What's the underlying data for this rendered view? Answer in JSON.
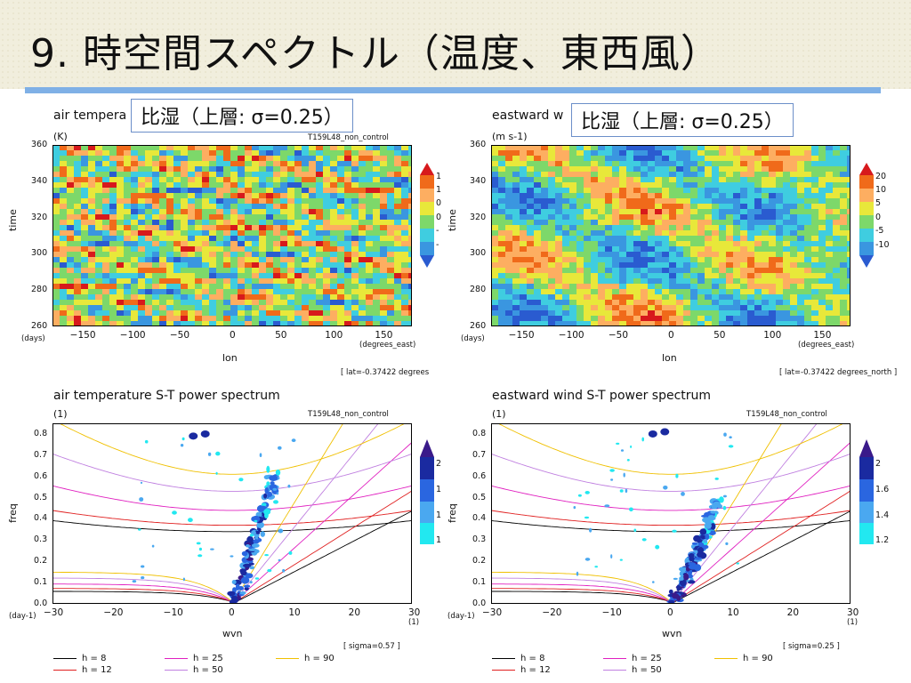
{
  "slide": {
    "title": "9. 時空間スペクトル（温度、東西風）",
    "accent_color": "#7fb0e6"
  },
  "callouts": [
    "比湿（上層: σ=0.25）",
    "比湿（上層: σ=0.25）"
  ],
  "hov_left": {
    "title": "air tempera",
    "units": "(K)",
    "run": "T159L48_non_control",
    "ylabel": "time",
    "yunits": "(days)",
    "xlabel": "lon",
    "xunits": "(degrees_east)",
    "footer": "[ lat=-0.37422 degrees",
    "colorbar_labels": [
      "1",
      "1",
      "0",
      "0",
      "-",
      "-"
    ]
  },
  "hov_right": {
    "title": "eastward w",
    "units": "(m s-1)",
    "ylabel": "time",
    "yunits": "(days)",
    "xlabel": "lon",
    "xunits": "(degrees_east)",
    "footer": "[ lat=-0.37422 degrees_north ]",
    "colorbar_labels": [
      "20",
      "10",
      "5",
      "0",
      "-5",
      "-10"
    ]
  },
  "spec_left": {
    "title": "air temperature S-T power spectrum",
    "units": "(1)",
    "run": "T159L48_non_control",
    "ylabel": "freq",
    "yunits": "(day-1)",
    "xlabel": "wvn",
    "xunits": "(1)",
    "footer": "[ sigma=0.57 ]",
    "colorbar_labels": [
      "2",
      "1",
      "1",
      "1"
    ]
  },
  "spec_right": {
    "title": "eastward wind S-T power spectrum",
    "units": "(1)",
    "run": "T159L48_non_control",
    "ylabel": "freq",
    "yunits": "(day-1)",
    "xlabel": "wvn",
    "xunits": "(1)",
    "footer": "[ sigma=0.25 ]",
    "colorbar_labels": [
      "2",
      "1.6",
      "1.4",
      "1.2"
    ]
  },
  "legend": [
    {
      "label": "h =  8",
      "color": "#000000"
    },
    {
      "label": "h = 25",
      "color": "#e020c0"
    },
    {
      "label": "h = 90",
      "color": "#f0c000"
    },
    {
      "label": "h = 12",
      "color": "#e02020"
    },
    {
      "label": "h = 50",
      "color": "#c080e0"
    }
  ],
  "chart_data": [
    {
      "type": "heatmap",
      "title": "air tempera",
      "xlabel": "lon",
      "ylabel": "time",
      "xlim": [
        -180,
        180
      ],
      "ylim": [
        260,
        360
      ],
      "x_ticks": [
        -150,
        -100,
        -50,
        0,
        50,
        100,
        150
      ],
      "y_ticks": [
        260,
        280,
        300,
        320,
        340,
        360
      ],
      "colorbar": [
        "1",
        "1",
        "0",
        "0",
        "-",
        "-"
      ]
    },
    {
      "type": "heatmap",
      "title": "eastward w",
      "xlabel": "lon",
      "ylabel": "time",
      "xlim": [
        -180,
        180
      ],
      "ylim": [
        260,
        360
      ],
      "x_ticks": [
        -150,
        -100,
        -50,
        0,
        50,
        100,
        150
      ],
      "y_ticks": [
        260,
        280,
        300,
        320,
        340,
        360
      ],
      "colorbar": [
        "20",
        "10",
        "5",
        "0",
        "-5",
        "-10"
      ]
    },
    {
      "type": "heatmap",
      "title": "air temperature S-T power spectrum",
      "xlabel": "wvn",
      "ylabel": "freq",
      "xlim": [
        -30,
        30
      ],
      "ylim": [
        0,
        0.85
      ],
      "x_ticks": [
        -30,
        -20,
        -10,
        0,
        10,
        20,
        30
      ],
      "y_ticks": [
        0.0,
        0.1,
        0.2,
        0.3,
        0.4,
        0.5,
        0.6,
        0.7,
        0.8
      ],
      "colorbar": [
        "2",
        "1",
        "1",
        "1"
      ],
      "dispersion_curves": [
        "h =  8",
        "h = 12",
        "h = 25",
        "h = 50",
        "h = 90"
      ]
    },
    {
      "type": "heatmap",
      "title": "eastward wind S-T power spectrum",
      "xlabel": "wvn",
      "ylabel": "freq",
      "xlim": [
        -30,
        30
      ],
      "ylim": [
        0,
        0.85
      ],
      "x_ticks": [
        -30,
        -20,
        -10,
        0,
        10,
        20,
        30
      ],
      "y_ticks": [
        0.0,
        0.1,
        0.2,
        0.3,
        0.4,
        0.5,
        0.6,
        0.7,
        0.8
      ],
      "colorbar": [
        "2",
        "1.6",
        "1.4",
        "1.2"
      ],
      "dispersion_curves": [
        "h =  8",
        "h = 12",
        "h = 25",
        "h = 50",
        "h = 90"
      ]
    }
  ]
}
